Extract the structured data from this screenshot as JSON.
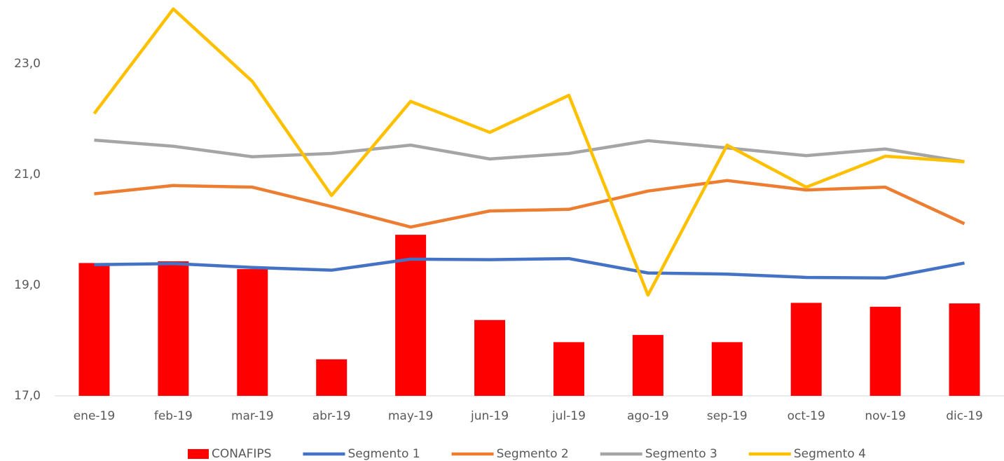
{
  "chart_data": {
    "type": "combo",
    "categories": [
      "ene-19",
      "feb-19",
      "mar-19",
      "abr-19",
      "may-19",
      "jun-19",
      "jul-19",
      "ago-19",
      "sep-19",
      "oct-19",
      "nov-19",
      "dic-19"
    ],
    "series": [
      {
        "name": "CONAFIPS",
        "type": "bar",
        "color": "#ff0000",
        "values": [
          19.4,
          19.43,
          19.29,
          17.66,
          19.91,
          18.37,
          17.97,
          18.1,
          17.97,
          18.68,
          18.61,
          18.67
        ]
      },
      {
        "name": "Segmento 1",
        "type": "line",
        "color": "#4472c4",
        "values": [
          19.37,
          19.39,
          19.32,
          19.27,
          19.47,
          19.46,
          19.48,
          19.22,
          19.2,
          19.14,
          19.13,
          19.4
        ]
      },
      {
        "name": "Segmento 2",
        "type": "line",
        "color": "#ed7d31",
        "values": [
          20.65,
          20.8,
          20.77,
          20.42,
          20.05,
          20.34,
          20.37,
          20.7,
          20.89,
          20.72,
          20.77,
          20.11
        ]
      },
      {
        "name": "Segmento 3",
        "type": "line",
        "color": "#a5a5a5",
        "values": [
          21.62,
          21.51,
          21.32,
          21.38,
          21.53,
          21.28,
          21.38,
          21.61,
          21.48,
          21.34,
          21.46,
          21.23
        ]
      },
      {
        "name": "Segmento 4",
        "type": "line",
        "color": "#ffc000",
        "values": [
          22.1,
          23.99,
          22.68,
          20.62,
          22.32,
          21.76,
          22.43,
          18.82,
          21.53,
          20.77,
          21.33,
          21.23
        ]
      }
    ],
    "ylim": [
      17,
      24
    ],
    "yticks": [
      {
        "value": 17,
        "label": "17,0"
      },
      {
        "value": 19,
        "label": "19,0"
      },
      {
        "value": 21,
        "label": "21,0"
      },
      {
        "value": 23,
        "label": "23,0"
      }
    ],
    "grid": false,
    "legend": "bottom"
  }
}
